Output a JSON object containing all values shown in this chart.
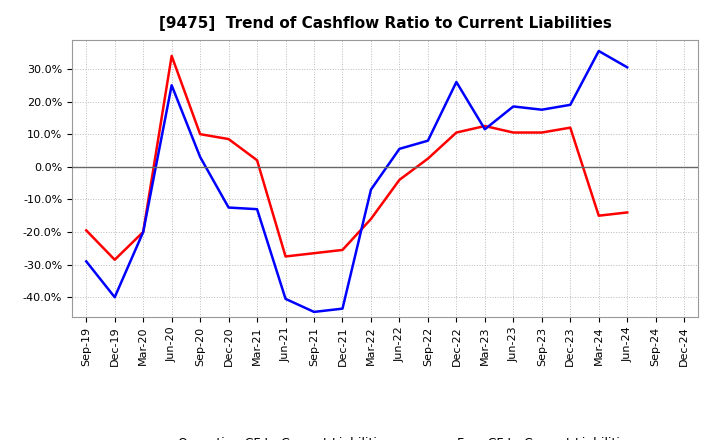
{
  "title": "[9475]  Trend of Cashflow Ratio to Current Liabilities",
  "x_labels": [
    "Sep-19",
    "Dec-19",
    "Mar-20",
    "Jun-20",
    "Sep-20",
    "Dec-20",
    "Mar-21",
    "Jun-21",
    "Sep-21",
    "Dec-21",
    "Mar-22",
    "Jun-22",
    "Sep-22",
    "Dec-22",
    "Mar-23",
    "Jun-23",
    "Sep-23",
    "Dec-23",
    "Mar-24",
    "Jun-24",
    "Sep-24",
    "Dec-24"
  ],
  "operating_cf": [
    -19.5,
    -28.5,
    -20.0,
    34.0,
    10.0,
    8.5,
    2.0,
    -27.5,
    -26.5,
    -25.5,
    -16.0,
    -4.0,
    2.5,
    10.5,
    12.5,
    10.5,
    10.5,
    12.0,
    -15.0,
    -14.0,
    null,
    null
  ],
  "free_cf": [
    -29.0,
    -40.0,
    -20.0,
    25.0,
    3.0,
    -12.5,
    -13.0,
    -40.5,
    -44.5,
    -43.5,
    -7.0,
    5.5,
    8.0,
    26.0,
    11.5,
    18.5,
    17.5,
    19.0,
    35.5,
    30.5,
    null,
    null
  ],
  "operating_color": "#ff0000",
  "free_color": "#0000ff",
  "ylim": [
    -46,
    39
  ],
  "yticks": [
    -40,
    -30,
    -20,
    -10,
    0,
    10,
    20,
    30
  ],
  "background_color": "#ffffff",
  "grid_color": "#bbbbbb",
  "legend_op": "Operating CF to Current Liabilities",
  "legend_free": "Free CF to Current Liabilities",
  "title_fontsize": 11,
  "tick_fontsize": 8,
  "legend_fontsize": 9
}
